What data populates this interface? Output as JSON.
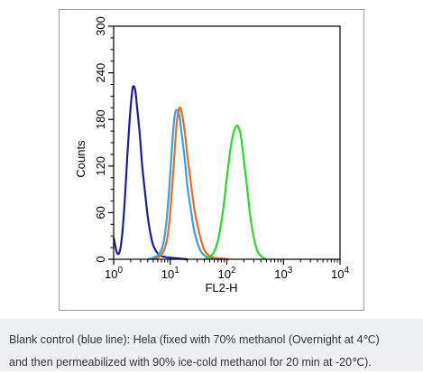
{
  "chart_data": {
    "type": "line",
    "xlabel": "FL2-H",
    "ylabel": "Counts",
    "x_scale": "log",
    "xlim": [
      1,
      10000
    ],
    "ylim": [
      0,
      300
    ],
    "x_ticks": [
      {
        "value": 1,
        "base": "10",
        "exp": "0"
      },
      {
        "value": 10,
        "base": "10",
        "exp": "1"
      },
      {
        "value": 100,
        "base": "10",
        "exp": "2"
      },
      {
        "value": 1000,
        "base": "10",
        "exp": "3"
      },
      {
        "value": 10000,
        "base": "10",
        "exp": "4"
      }
    ],
    "y_ticks": [
      "0",
      "60",
      "120",
      "180",
      "240",
      "300"
    ],
    "grid": false,
    "series": [
      {
        "color": "#1c1ca3",
        "x": [
          1,
          1.15,
          1.3,
          1.45,
          1.6,
          1.75,
          1.9,
          2.05,
          2.2,
          2.4,
          2.6,
          2.9,
          3.2,
          3.6,
          4.0,
          4.5,
          5.0,
          5.8,
          6.5,
          8.0,
          10,
          14,
          20
        ],
        "y": [
          28,
          8,
          12,
          40,
          85,
          135,
          175,
          205,
          222,
          218,
          195,
          160,
          120,
          85,
          55,
          32,
          18,
          9,
          5,
          3,
          2,
          1,
          0
        ]
      },
      {
        "color": "#2fa3e6",
        "x": [
          4,
          5,
          6,
          7,
          8,
          9,
          10,
          11,
          12,
          13,
          14.5,
          16,
          18,
          20,
          23,
          26,
          30,
          35,
          42,
          55,
          80
        ],
        "y": [
          0,
          2,
          5,
          12,
          30,
          65,
          110,
          155,
          185,
          192,
          185,
          160,
          130,
          95,
          65,
          40,
          22,
          10,
          4,
          1,
          0
        ]
      },
      {
        "color": "#f0691e",
        "x": [
          5,
          6,
          7,
          8,
          9,
          10,
          11.5,
          13,
          14.5,
          16,
          18,
          20,
          23,
          26,
          30,
          35,
          40,
          48,
          60,
          80,
          110
        ],
        "y": [
          0,
          2,
          6,
          14,
          30,
          60,
          120,
          175,
          195,
          188,
          165,
          135,
          100,
          70,
          45,
          25,
          12,
          5,
          2,
          1,
          0
        ]
      },
      {
        "color": "#22e022",
        "x": [
          40,
          50,
          60,
          70,
          80,
          90,
          100,
          115,
          130,
          150,
          165,
          180,
          200,
          230,
          260,
          300,
          350,
          420,
          500
        ],
        "y": [
          0,
          3,
          10,
          25,
          48,
          75,
          105,
          140,
          162,
          172,
          168,
          155,
          128,
          90,
          55,
          28,
          10,
          3,
          0
        ]
      }
    ]
  },
  "caption": {
    "line1": "Blank control (blue line): Hela (fixed with 70% methanol (Overnight at 4℃)",
    "line2": "and then permeabilized with 90% ice-cold methanol for 20 min at -20℃)."
  }
}
